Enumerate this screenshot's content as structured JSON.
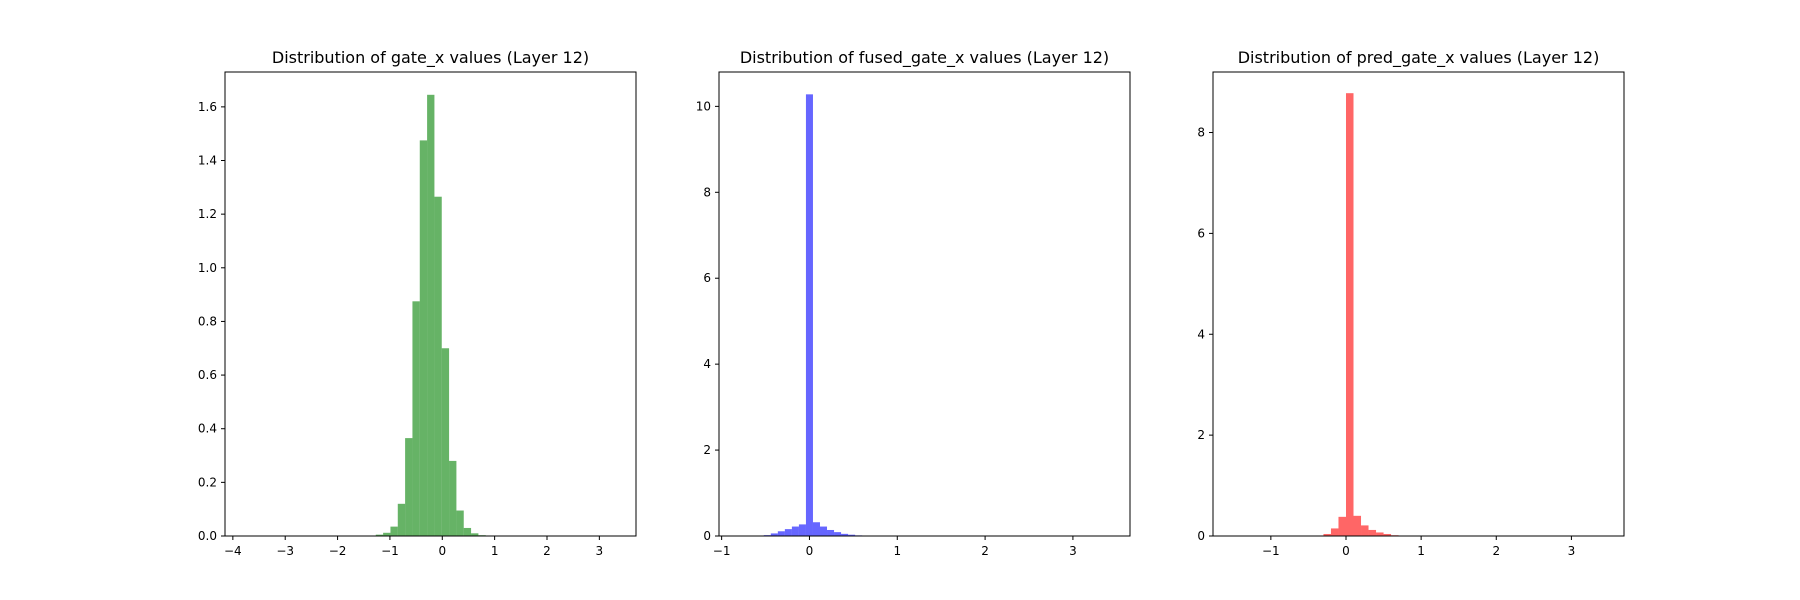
{
  "chart_data": [
    {
      "type": "bar",
      "subtype": "histogram",
      "title": "Distribution of gate_x values (Layer 12)",
      "xlabel": "",
      "ylabel": "",
      "color": "#008000",
      "alpha": 0.6,
      "xlim": [
        -4.15,
        3.7
      ],
      "ylim": [
        0,
        1.73
      ],
      "xticks": [
        -4,
        -3,
        -2,
        -1,
        0,
        1,
        2,
        3
      ],
      "yticks": [
        0.0,
        0.2,
        0.4,
        0.6,
        0.8,
        1.0,
        1.2,
        1.4,
        1.6
      ],
      "ytick_decimals": 1,
      "grid": false,
      "bins": [
        {
          "x0": -1.27,
          "x1": -1.13,
          "value": 0.005
        },
        {
          "x0": -1.13,
          "x1": -0.99,
          "value": 0.012
        },
        {
          "x0": -0.99,
          "x1": -0.85,
          "value": 0.035
        },
        {
          "x0": -0.85,
          "x1": -0.71,
          "value": 0.12
        },
        {
          "x0": -0.71,
          "x1": -0.57,
          "value": 0.365
        },
        {
          "x0": -0.57,
          "x1": -0.43,
          "value": 0.875
        },
        {
          "x0": -0.43,
          "x1": -0.29,
          "value": 1.475
        },
        {
          "x0": -0.29,
          "x1": -0.15,
          "value": 1.645
        },
        {
          "x0": -0.15,
          "x1": -0.01,
          "value": 1.265
        },
        {
          "x0": -0.01,
          "x1": 0.13,
          "value": 0.7
        },
        {
          "x0": 0.13,
          "x1": 0.27,
          "value": 0.28
        },
        {
          "x0": 0.27,
          "x1": 0.41,
          "value": 0.095
        },
        {
          "x0": 0.41,
          "x1": 0.55,
          "value": 0.03
        },
        {
          "x0": 0.55,
          "x1": 0.69,
          "value": 0.01
        },
        {
          "x0": 0.69,
          "x1": 0.83,
          "value": 0.003
        }
      ]
    },
    {
      "type": "bar",
      "subtype": "histogram",
      "title": "Distribution of fused_gate_x values (Layer 12)",
      "xlabel": "",
      "ylabel": "",
      "color": "#0000ff",
      "alpha": 0.6,
      "xlim": [
        -1.03,
        3.65
      ],
      "ylim": [
        0,
        10.8
      ],
      "xticks": [
        -1,
        0,
        1,
        2,
        3
      ],
      "yticks": [
        0,
        2,
        4,
        6,
        8,
        10
      ],
      "ytick_decimals": 0,
      "grid": false,
      "bins": [
        {
          "x0": -0.52,
          "x1": -0.44,
          "value": 0.02
        },
        {
          "x0": -0.44,
          "x1": -0.36,
          "value": 0.06
        },
        {
          "x0": -0.36,
          "x1": -0.28,
          "value": 0.11
        },
        {
          "x0": -0.28,
          "x1": -0.2,
          "value": 0.16
        },
        {
          "x0": -0.2,
          "x1": -0.12,
          "value": 0.22
        },
        {
          "x0": -0.12,
          "x1": -0.04,
          "value": 0.27
        },
        {
          "x0": -0.04,
          "x1": 0.04,
          "value": 10.28
        },
        {
          "x0": 0.04,
          "x1": 0.12,
          "value": 0.32
        },
        {
          "x0": 0.12,
          "x1": 0.2,
          "value": 0.22
        },
        {
          "x0": 0.2,
          "x1": 0.28,
          "value": 0.14
        },
        {
          "x0": 0.28,
          "x1": 0.36,
          "value": 0.09
        },
        {
          "x0": 0.36,
          "x1": 0.44,
          "value": 0.05
        },
        {
          "x0": 0.44,
          "x1": 0.52,
          "value": 0.03
        },
        {
          "x0": 0.52,
          "x1": 0.6,
          "value": 0.015
        },
        {
          "x0": 0.6,
          "x1": 0.68,
          "value": 0.005
        }
      ]
    },
    {
      "type": "bar",
      "subtype": "histogram",
      "title": "Distribution of pred_gate_x values (Layer 12)",
      "xlabel": "",
      "ylabel": "",
      "color": "#ff0000",
      "alpha": 0.6,
      "xlim": [
        -1.77,
        3.7
      ],
      "ylim": [
        0,
        9.2
      ],
      "xticks": [
        -1,
        0,
        1,
        2,
        3
      ],
      "yticks": [
        0,
        2,
        4,
        6,
        8
      ],
      "ytick_decimals": 0,
      "grid": false,
      "bins": [
        {
          "x0": -0.4,
          "x1": -0.3,
          "value": 0.01
        },
        {
          "x0": -0.3,
          "x1": -0.2,
          "value": 0.04
        },
        {
          "x0": -0.2,
          "x1": -0.1,
          "value": 0.15
        },
        {
          "x0": -0.1,
          "x1": 0.0,
          "value": 0.38
        },
        {
          "x0": 0.0,
          "x1": 0.1,
          "value": 8.78
        },
        {
          "x0": 0.1,
          "x1": 0.2,
          "value": 0.4
        },
        {
          "x0": 0.2,
          "x1": 0.3,
          "value": 0.21
        },
        {
          "x0": 0.3,
          "x1": 0.4,
          "value": 0.12
        },
        {
          "x0": 0.4,
          "x1": 0.5,
          "value": 0.07
        },
        {
          "x0": 0.5,
          "x1": 0.6,
          "value": 0.04
        },
        {
          "x0": 0.6,
          "x1": 0.7,
          "value": 0.015
        }
      ]
    }
  ]
}
